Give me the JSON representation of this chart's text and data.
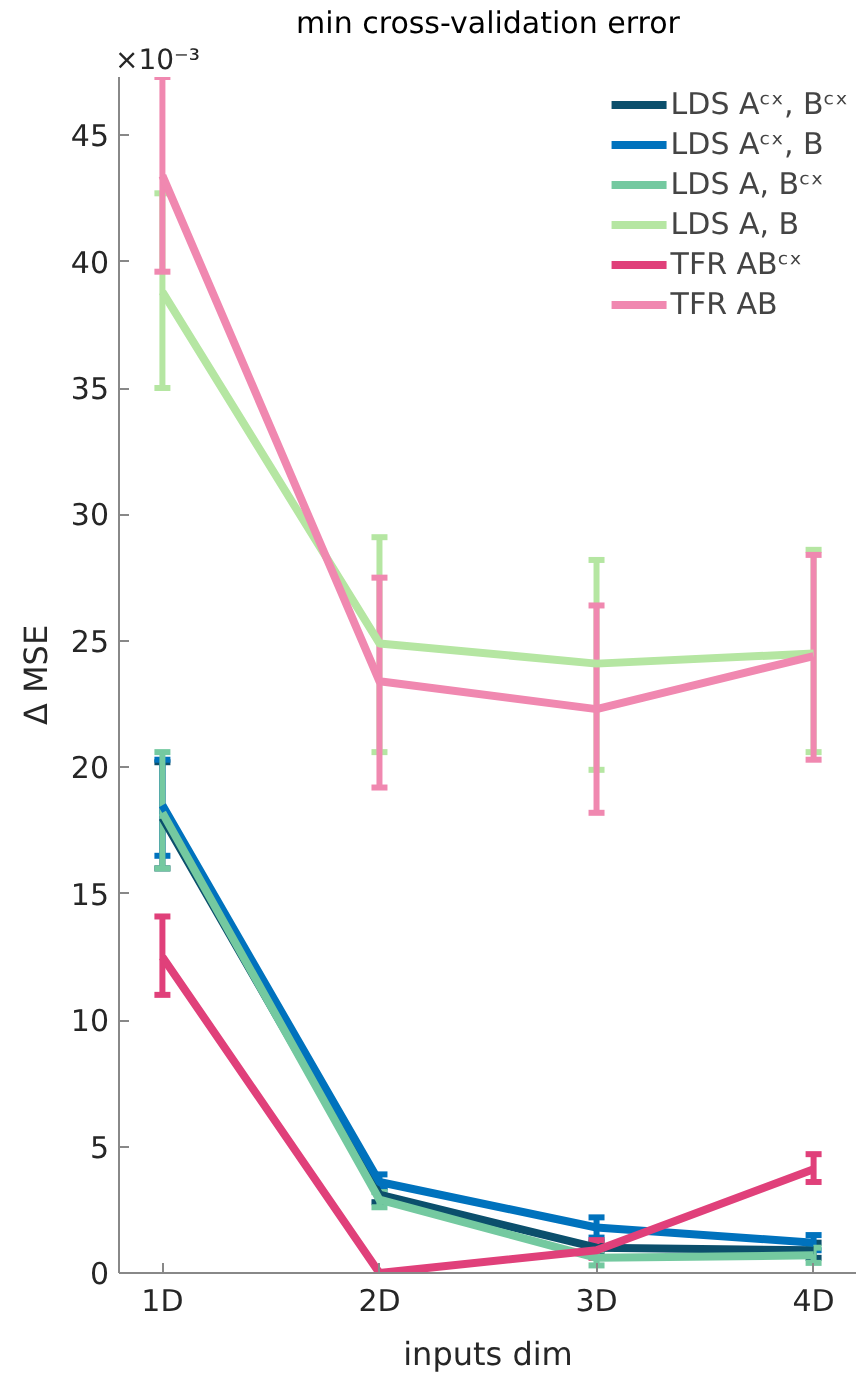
{
  "chart_data": {
    "type": "line",
    "title": "min cross-validation error",
    "xlabel": "inputs dim",
    "ylabel": "Δ MSE",
    "annotations": [
      "×10⁻³"
    ],
    "categories": [
      "1D",
      "2D",
      "3D",
      "4D"
    ],
    "ylim": [
      0,
      47.3
    ],
    "yticks": [
      0,
      5,
      10,
      15,
      20,
      25,
      30,
      35,
      40,
      45
    ],
    "grid": false,
    "legend": "top right",
    "marker": "none",
    "line_style": "solid",
    "series": [
      {
        "name": "LDS Aᶜˣ, Bᶜˣ",
        "color": "#0b4f6c",
        "values": [
          18.0,
          3.1,
          1.0,
          0.9
        ],
        "errors": [
          [
            16.0,
            20.2
          ],
          [
            2.8,
            3.4
          ],
          [
            0.8,
            1.2
          ],
          [
            0.6,
            1.2
          ]
        ]
      },
      {
        "name": "LDS Aᶜˣ, B",
        "color": "#0072bd",
        "values": [
          18.5,
          3.6,
          1.8,
          1.2
        ],
        "errors": [
          [
            16.5,
            20.3
          ],
          [
            3.3,
            3.9
          ],
          [
            1.4,
            2.2
          ],
          [
            0.9,
            1.5
          ]
        ]
      },
      {
        "name": "LDS A, Bᶜˣ",
        "color": "#74c9a0",
        "values": [
          18.2,
          2.9,
          0.6,
          0.7
        ],
        "errors": [
          [
            16.0,
            20.6
          ],
          [
            2.6,
            3.2
          ],
          [
            0.3,
            0.9
          ],
          [
            0.4,
            1.0
          ]
        ]
      },
      {
        "name": "LDS A, B",
        "color": "#b5e6a2",
        "values": [
          38.8,
          24.9,
          24.1,
          24.5
        ],
        "errors": [
          [
            35.0,
            42.7
          ],
          [
            20.6,
            29.1
          ],
          [
            19.9,
            28.2
          ],
          [
            20.6,
            28.6
          ]
        ]
      },
      {
        "name": "TFR ABᶜˣ",
        "color": "#e0407a",
        "values": [
          12.5,
          0.0,
          0.9,
          4.1
        ],
        "errors": [
          [
            11.0,
            14.1
          ],
          null,
          [
            0.6,
            1.3
          ],
          [
            3.6,
            4.7
          ]
        ]
      },
      {
        "name": "TFR AB",
        "color": "#f088b0",
        "values": [
          43.4,
          23.4,
          22.3,
          24.4
        ],
        "errors": [
          [
            39.6,
            47.3
          ],
          [
            19.2,
            27.5
          ],
          [
            18.2,
            26.4
          ],
          [
            20.3,
            28.4
          ]
        ]
      }
    ]
  }
}
